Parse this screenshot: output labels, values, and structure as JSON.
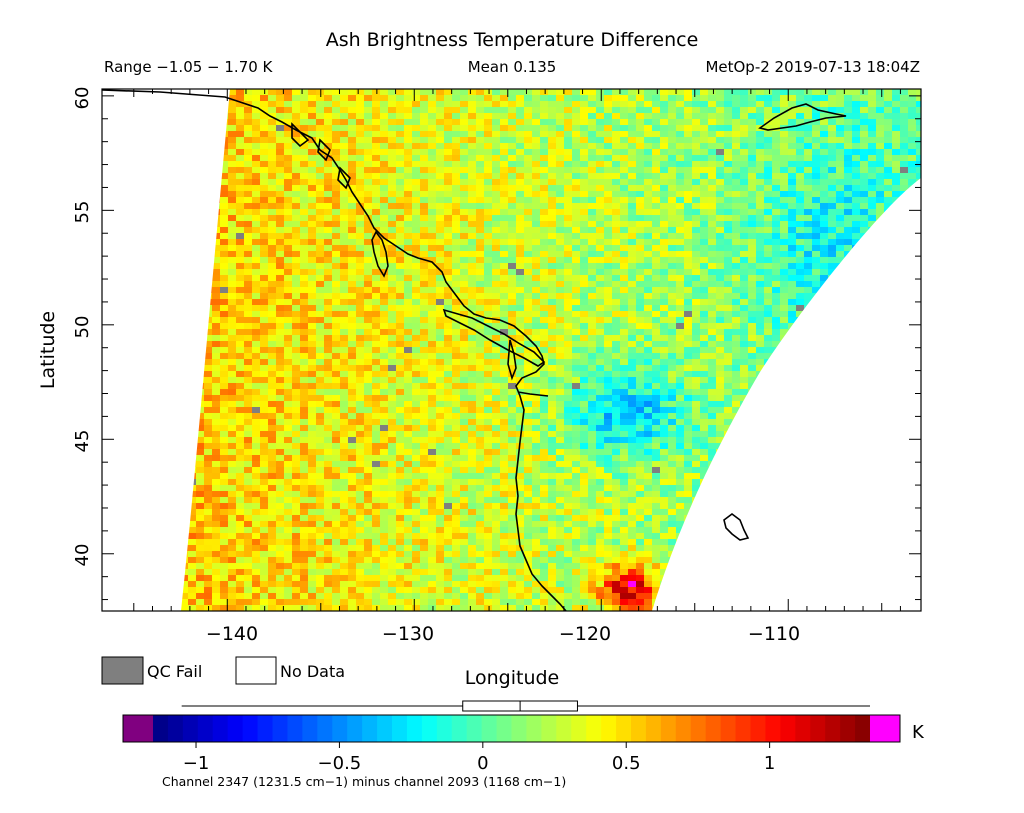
{
  "title": "Ash Brightness Temperature Difference",
  "header": {
    "range": "Range −1.05 − 1.70 K",
    "mean": "Mean 0.135",
    "satellite_time": "MetOp-2 2019-07-13 18:04Z"
  },
  "axes": {
    "ylabel": "Latitude",
    "xlabel": "Longitude",
    "lat_ticks": [
      "60",
      "55",
      "50",
      "45",
      "40"
    ],
    "lon_ticks": [
      "−140",
      "−130",
      "−120",
      "−110"
    ],
    "lat_range": [
      37.5,
      60.3
    ],
    "lon_range": [
      -146.7,
      -102.9
    ]
  },
  "legend": {
    "qc_fail": "QC Fail",
    "no_data": "No Data",
    "qc_color": "#7f7f7f",
    "nodata_color": "#ffffff"
  },
  "colorbar": {
    "unit": "K",
    "tick_labels": [
      "−1",
      "−0.5",
      "0",
      "0.5",
      "1"
    ],
    "tick_values": [
      -1,
      -0.5,
      0,
      0.5,
      1
    ],
    "vmin": -1.15,
    "vmax": 1.35,
    "low_color": "#800080",
    "high_color": "#ff00ff",
    "box_range": [
      -0.07,
      0.33
    ],
    "box_median": 0.13,
    "whisker_range": [
      -1.05,
      1.35
    ]
  },
  "footer": {
    "channel_note": "Channel 2347 (1231.5 cm−1) minus channel 2093 (1168 cm−1)"
  },
  "colors": {
    "frame": "#000000",
    "coast": "#000000"
  }
}
